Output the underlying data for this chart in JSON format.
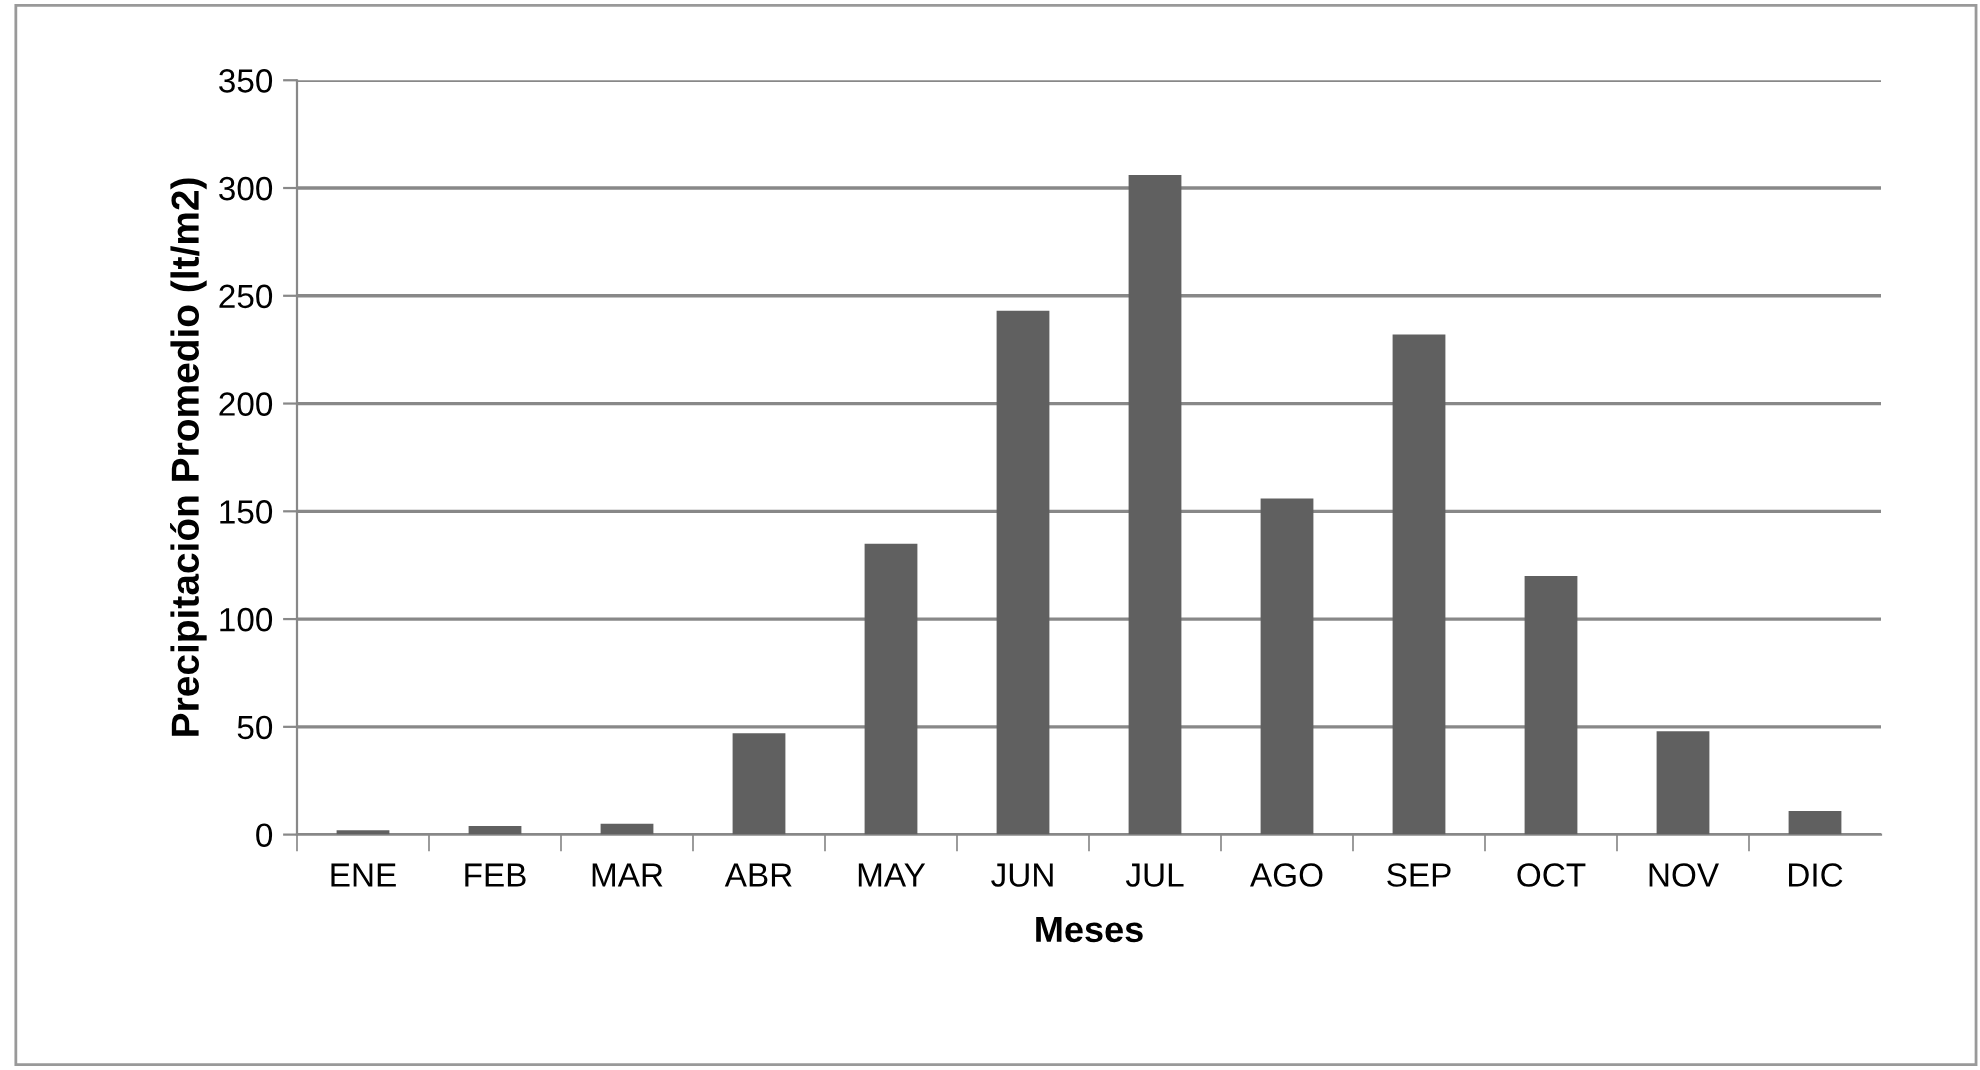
{
  "chart_data": {
    "type": "bar",
    "xlabel": "Meses",
    "ylabel": "Precipitación Promedio (lt/m2)",
    "categories": [
      "ENE",
      "FEB",
      "MAR",
      "ABR",
      "MAY",
      "JUN",
      "JUL",
      "AGO",
      "SEP",
      "OCT",
      "NOV",
      "DIC"
    ],
    "values": [
      2,
      4,
      5,
      47,
      135,
      243,
      306,
      156,
      232,
      120,
      48,
      11
    ],
    "color": "#606060",
    "ylim": [
      0,
      350
    ],
    "yticks": [
      0,
      50,
      100,
      150,
      200,
      250,
      300,
      350
    ],
    "grid": "y",
    "legend": false
  }
}
